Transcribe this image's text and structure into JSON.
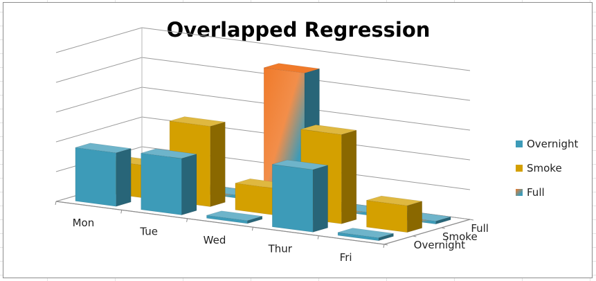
{
  "chart_data": {
    "type": "bar",
    "title": "Overlapped Regression",
    "categories": [
      "Mon",
      "Tue",
      "Wed",
      "Thur",
      "Fri"
    ],
    "series": [
      {
        "name": "Overnight",
        "values": [
          1.8,
          1.9,
          0.1,
          2.1,
          0.1
        ],
        "color": "#3d9bb8"
      },
      {
        "name": "Smoke",
        "values": [
          1.1,
          2.7,
          0.9,
          3.0,
          0.9
        ],
        "color": "#d4a000"
      },
      {
        "name": "Full",
        "values": [
          0.1,
          0.1,
          4.5,
          0.1,
          0.1
        ],
        "color": "#3d9bb8",
        "accent_color": "#f07a2a"
      }
    ],
    "depth_labels": [
      "Overnight",
      "Smoke",
      "Full"
    ],
    "ylim": [
      0,
      5
    ],
    "grid": true,
    "legend_position": "right"
  }
}
